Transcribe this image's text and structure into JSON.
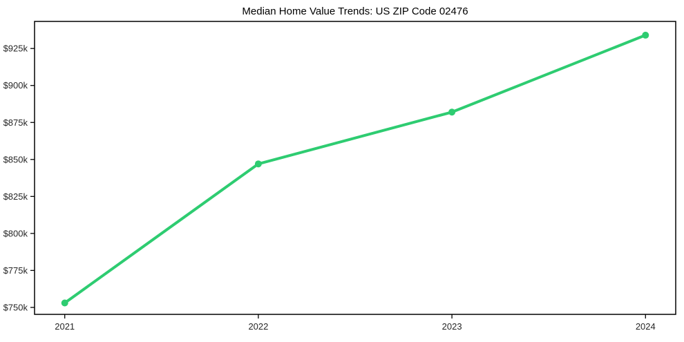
{
  "chart_data": {
    "type": "line",
    "title": "Median Home Value Trends: US ZIP Code 02476",
    "x": [
      2021,
      2022,
      2023,
      2024
    ],
    "x_tick_labels": [
      "2021",
      "2022",
      "2023",
      "2024"
    ],
    "values": [
      753000,
      847000,
      882000,
      934000
    ],
    "y_ticks": [
      {
        "value": 750000,
        "label": "$750k"
      },
      {
        "value": 775000,
        "label": "$775k"
      },
      {
        "value": 800000,
        "label": "$800k"
      },
      {
        "value": 825000,
        "label": "$825k"
      },
      {
        "value": 850000,
        "label": "$850k"
      },
      {
        "value": 875000,
        "label": "$875k"
      },
      {
        "value": 900000,
        "label": "$900k"
      },
      {
        "value": 925000,
        "label": "$925k"
      }
    ],
    "xlim": [
      2020.844,
      2024.156
    ],
    "ylim": [
      745300,
      943300
    ],
    "xlabel": "",
    "ylabel": "",
    "grid": false,
    "legend": "none",
    "line_color": "#2ecc71",
    "axis_color": "#000000",
    "tick_label_color": "#262626",
    "background_color": "#ffffff",
    "line_width": 4,
    "marker": "circle",
    "marker_radius": 5
  }
}
